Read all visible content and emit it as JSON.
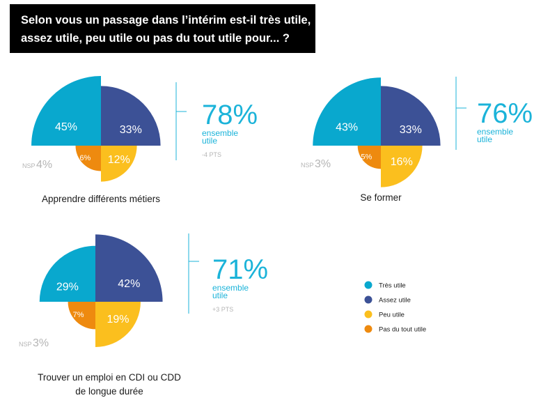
{
  "title": {
    "line1": "Selon vous un passage dans l’intérim est-il très utile,",
    "line2": "assez utile, peu utile ou pas du tout utile pour... ?"
  },
  "colors": {
    "tres_utile": "#09a8ce",
    "assez_utile": "#3c5196",
    "peu_utile": "#fbbf1e",
    "pas_du_tout": "#ee8a0f",
    "total": "#1bb3d9",
    "muted": "#b5b5b5",
    "text": "#1a1a1a"
  },
  "legend": [
    {
      "label": "Très utile",
      "color": "#09a8ce"
    },
    {
      "label": "Assez utile",
      "color": "#3c5196"
    },
    {
      "label": "Peu utile",
      "color": "#fbbf1e"
    },
    {
      "label": "Pas du tout utile",
      "color": "#ee8a0f"
    }
  ],
  "chart_data": [
    {
      "type": "pie",
      "title": "Apprendre différents métiers",
      "series": [
        "Très utile",
        "Assez utile",
        "Peu utile",
        "Pas du tout utile"
      ],
      "values": [
        45,
        33,
        12,
        6
      ],
      "labels": [
        "45%",
        "33%",
        "12%",
        "6%"
      ],
      "nsp_label": "NSP",
      "nsp_value": "4%",
      "total_value": "78%",
      "total_line1": "ensemble",
      "total_line2": "utile",
      "change": "-4 PTS"
    },
    {
      "type": "pie",
      "title": "Se former",
      "series": [
        "Très utile",
        "Assez utile",
        "Peu utile",
        "Pas du tout utile"
      ],
      "values": [
        43,
        33,
        16,
        5
      ],
      "labels": [
        "43%",
        "33%",
        "16%",
        "5%"
      ],
      "nsp_label": "NSP",
      "nsp_value": "3%",
      "total_value": "76%",
      "total_line1": "ensemble",
      "total_line2": "utile",
      "change": ""
    },
    {
      "type": "pie",
      "title": "Trouver un emploi en CDI ou CDD",
      "title_line2": "de longue durée",
      "series": [
        "Très utile",
        "Assez utile",
        "Peu utile",
        "Pas du tout utile"
      ],
      "values": [
        29,
        42,
        19,
        7
      ],
      "labels": [
        "29%",
        "42%",
        "19%",
        "7%"
      ],
      "nsp_label": "NSP",
      "nsp_value": "3%",
      "total_value": "71%",
      "total_line1": "ensemble",
      "total_line2": "utile",
      "change": "+3 PTS"
    }
  ]
}
